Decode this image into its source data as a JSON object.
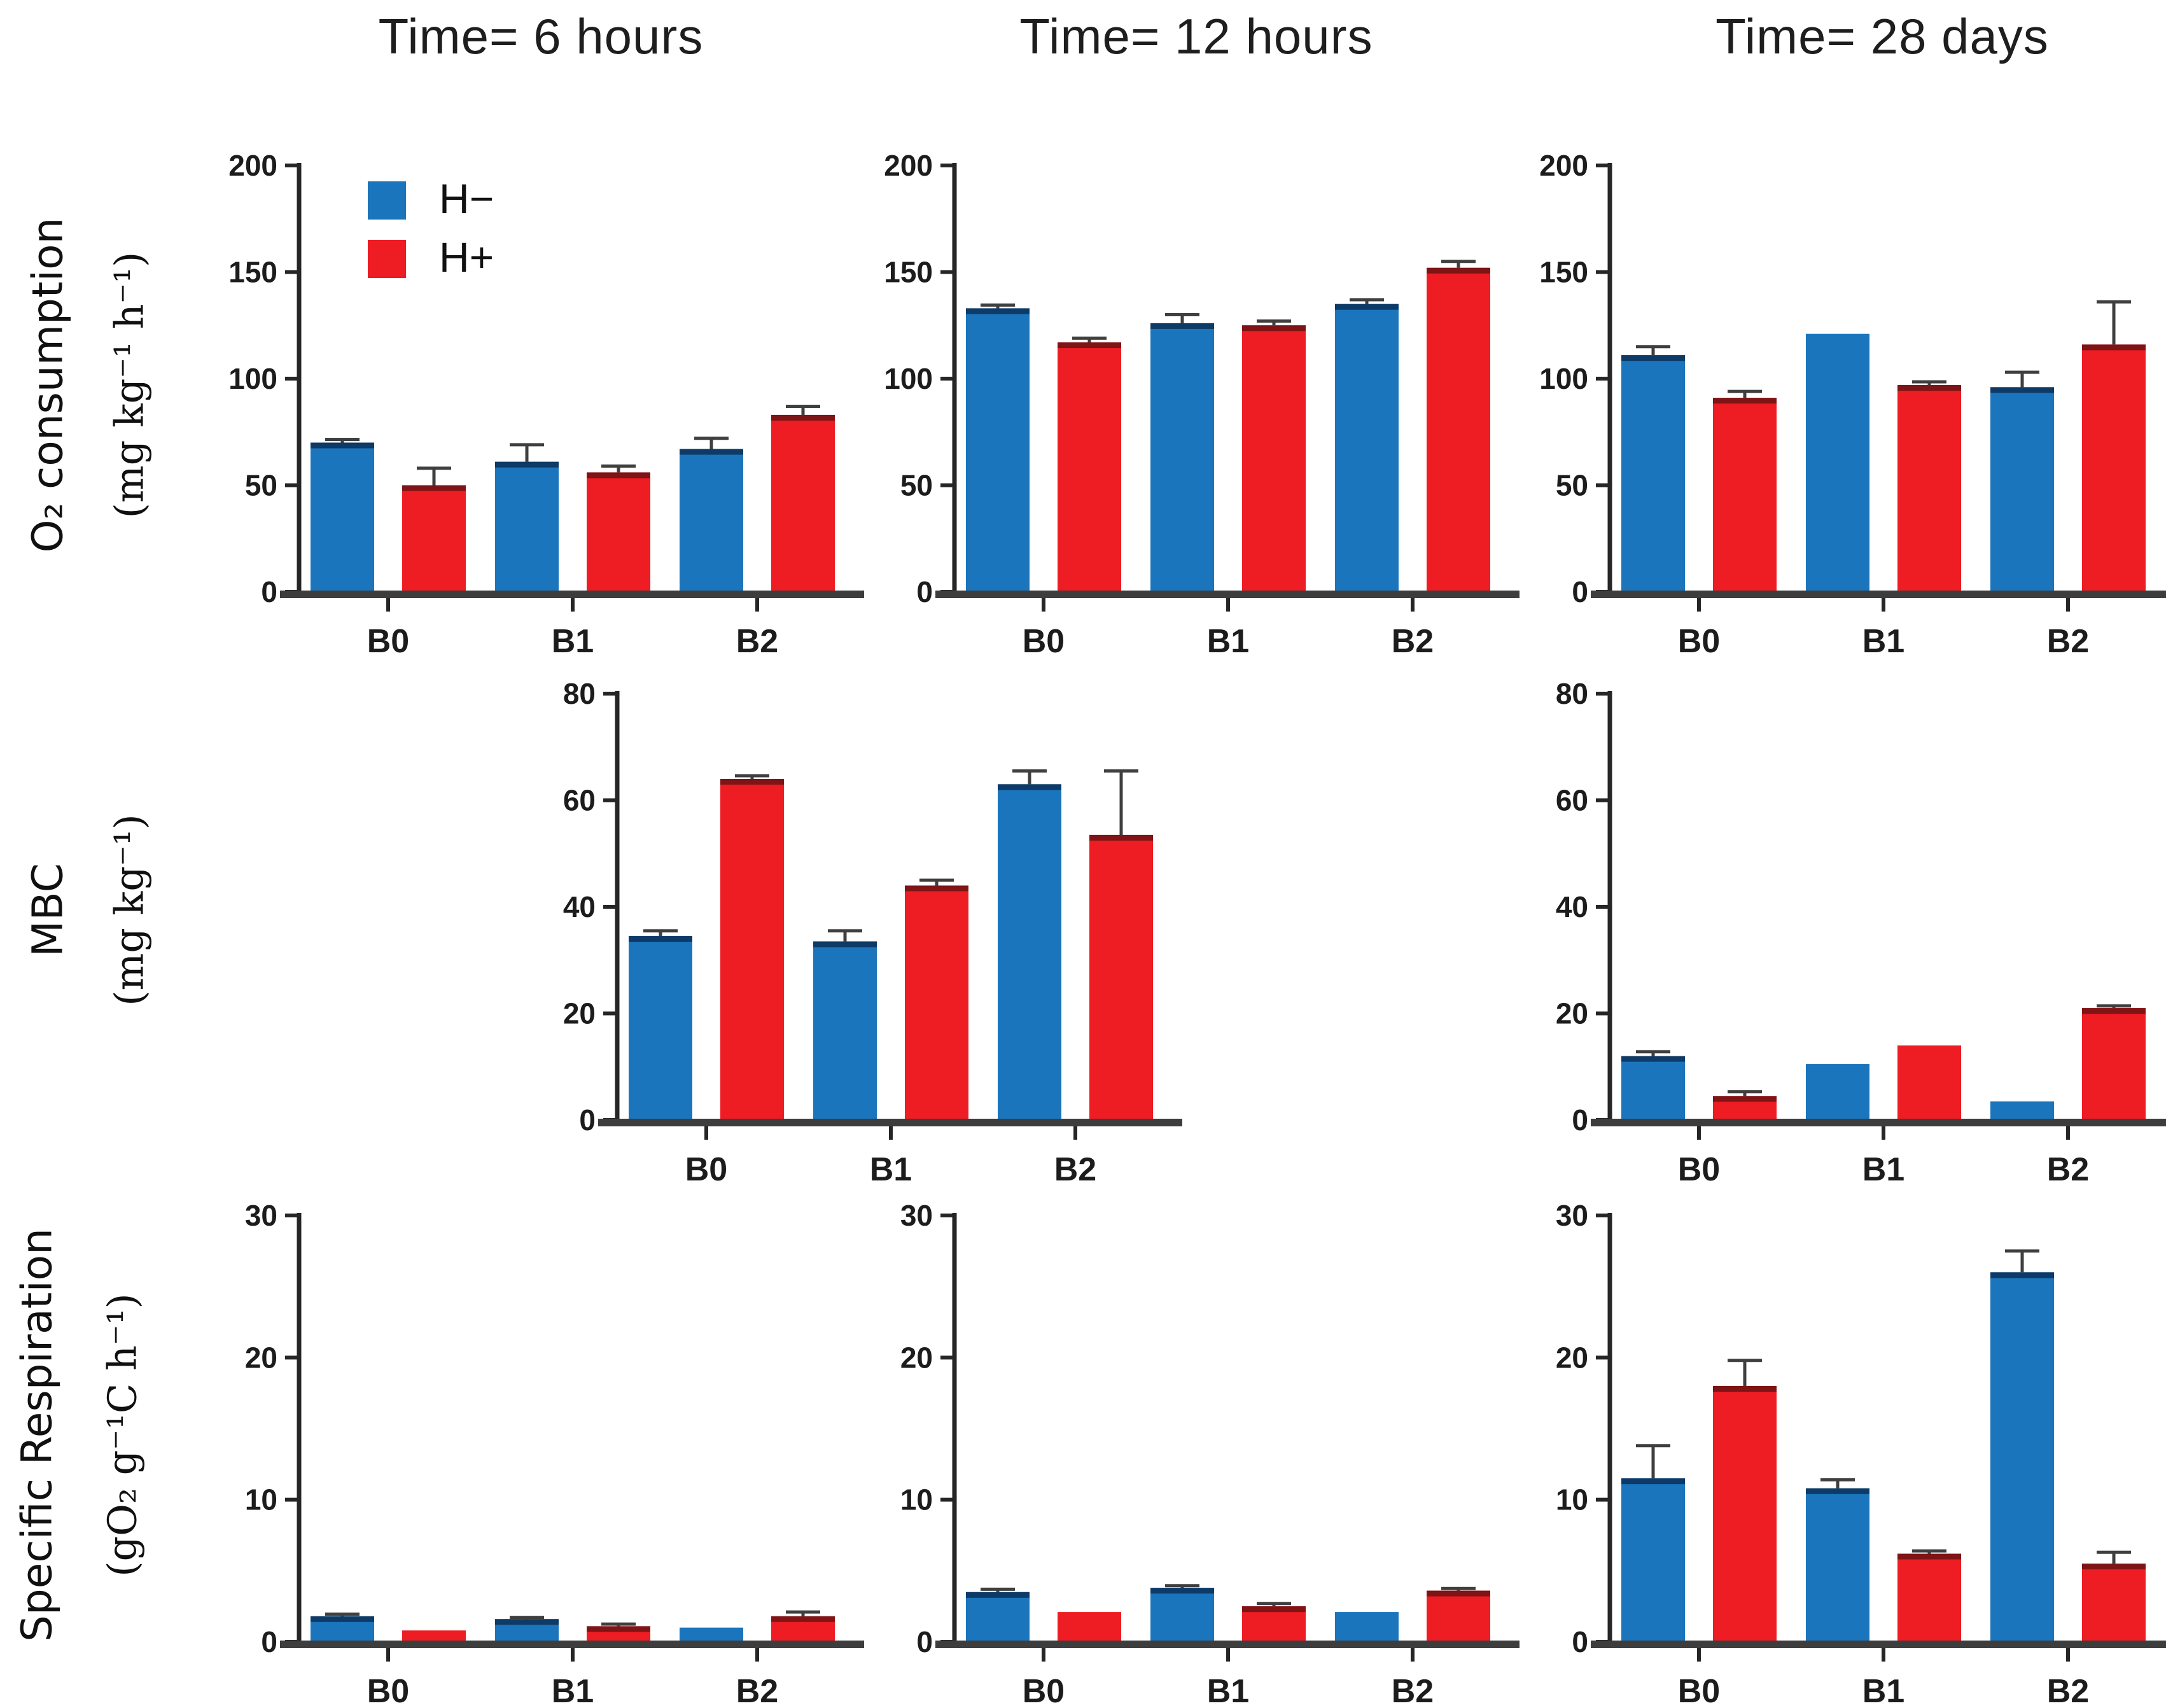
{
  "figure": {
    "background": "#ffffff",
    "column_headers": [
      {
        "label": "Time= 6 hours"
      },
      {
        "label": "Time= 12 hours"
      },
      {
        "label": "Time= 28 days"
      }
    ],
    "row_labels": [
      {
        "name": "O₂ consumption",
        "unit": "(mg kg⁻¹ h⁻¹)"
      },
      {
        "name": "MBC",
        "unit": "(mg kg⁻¹)"
      },
      {
        "name": "Specific Respiration",
        "unit": "(gO₂ g⁻¹C h⁻¹)"
      }
    ],
    "legend": {
      "items": [
        {
          "label": "H−",
          "color_key": "h_minus"
        },
        {
          "label": "H+",
          "color_key": "h_plus"
        }
      ]
    }
  },
  "colors": {
    "h_minus": "#1b75bc",
    "h_plus": "#ee1c23",
    "h_minus_dark": "#0d3a66",
    "h_plus_dark": "#7e1416",
    "axis": "#262626",
    "baseline": "#3d3d3d",
    "error": "#3f3f3f",
    "text": "#1c1c1c"
  },
  "chart_data": [
    {
      "id": "o2-6h",
      "type": "bar",
      "title": "Time= 6 hours",
      "ylabel": "O₂ consumption",
      "unit": "mg kg⁻¹ h⁻¹",
      "categories": [
        "B0",
        "B1",
        "B2"
      ],
      "ylim": [
        0,
        200
      ],
      "yticks": [
        0,
        50,
        100,
        150,
        200
      ],
      "series": [
        {
          "name": "H−",
          "color_key": "h_minus",
          "values": [
            70,
            61,
            67
          ],
          "errors": [
            1.5,
            8,
            5
          ]
        },
        {
          "name": "H+",
          "color_key": "h_plus",
          "values": [
            50,
            56,
            83
          ],
          "errors": [
            8,
            3,
            4
          ]
        }
      ],
      "legend": true,
      "pos": {
        "left": 260,
        "top": 190
      }
    },
    {
      "id": "o2-12h",
      "type": "bar",
      "title": "Time= 12 hours",
      "ylabel": "O₂ consumption",
      "unit": "mg kg⁻¹ h⁻¹",
      "categories": [
        "B0",
        "B1",
        "B2"
      ],
      "ylim": [
        0,
        200
      ],
      "yticks": [
        0,
        50,
        100,
        150,
        200
      ],
      "series": [
        {
          "name": "H−",
          "color_key": "h_minus",
          "values": [
            133,
            126,
            135
          ],
          "errors": [
            1.5,
            4,
            2
          ]
        },
        {
          "name": "H+",
          "color_key": "h_plus",
          "values": [
            117,
            125,
            152
          ],
          "errors": [
            2,
            2,
            3
          ]
        }
      ],
      "legend": false,
      "pos": {
        "left": 1290,
        "top": 190
      }
    },
    {
      "id": "o2-28d",
      "type": "bar",
      "title": "Time= 28 days",
      "ylabel": "O₂ consumption",
      "unit": "mg kg⁻¹ h⁻¹",
      "categories": [
        "B0",
        "B1",
        "B2"
      ],
      "ylim": [
        0,
        200
      ],
      "yticks": [
        0,
        50,
        100,
        150,
        200
      ],
      "series": [
        {
          "name": "H−",
          "color_key": "h_minus",
          "values": [
            111,
            121,
            96
          ],
          "errors": [
            4,
            0,
            7
          ]
        },
        {
          "name": "H+",
          "color_key": "h_plus",
          "values": [
            91,
            97,
            116
          ],
          "errors": [
            3,
            1.5,
            20
          ]
        }
      ],
      "legend": false,
      "pos": {
        "left": 2320,
        "top": 190
      }
    },
    {
      "id": "mbc-12h",
      "type": "bar",
      "title": "Time= 12 hours",
      "ylabel": "MBC",
      "unit": "mg kg⁻¹",
      "categories": [
        "B0",
        "B1",
        "B2"
      ],
      "ylim": [
        0,
        80
      ],
      "yticks": [
        0,
        20,
        40,
        60,
        80
      ],
      "series": [
        {
          "name": "H−",
          "color_key": "h_minus",
          "values": [
            34.5,
            33.5,
            63
          ],
          "errors": [
            1,
            2,
            2.5
          ]
        },
        {
          "name": "H+",
          "color_key": "h_plus",
          "values": [
            64,
            44,
            53.5
          ],
          "errors": [
            0.6,
            1,
            12
          ]
        }
      ],
      "legend": false,
      "pos": {
        "left": 760,
        "top": 1020
      }
    },
    {
      "id": "mbc-28d",
      "type": "bar",
      "title": "Time= 28 days",
      "ylabel": "MBC",
      "unit": "mg kg⁻¹",
      "categories": [
        "B0",
        "B1",
        "B2"
      ],
      "ylim": [
        0,
        80
      ],
      "yticks": [
        0,
        20,
        40,
        60,
        80
      ],
      "series": [
        {
          "name": "H−",
          "color_key": "h_minus",
          "values": [
            12,
            10.5,
            3.5
          ],
          "errors": [
            0.8,
            0,
            0
          ]
        },
        {
          "name": "H+",
          "color_key": "h_plus",
          "values": [
            4.5,
            14,
            21
          ],
          "errors": [
            0.8,
            0,
            0.4
          ]
        }
      ],
      "legend": false,
      "pos": {
        "left": 2320,
        "top": 1020
      }
    },
    {
      "id": "sr-6h",
      "type": "bar",
      "title": "Time= 6 hours",
      "ylabel": "Specific Respiration",
      "unit": "gO₂ g⁻¹C h⁻¹",
      "categories": [
        "B0",
        "B1",
        "B2"
      ],
      "ylim": [
        0,
        30
      ],
      "yticks": [
        0,
        10,
        20,
        30
      ],
      "series": [
        {
          "name": "H−",
          "color_key": "h_minus",
          "values": [
            1.8,
            1.6,
            1.0
          ],
          "errors": [
            0.15,
            0.12,
            0
          ]
        },
        {
          "name": "H+",
          "color_key": "h_plus",
          "values": [
            0.8,
            1.1,
            1.8
          ],
          "errors": [
            0,
            0.15,
            0.3
          ]
        }
      ],
      "legend": false,
      "pos": {
        "left": 260,
        "top": 1840
      }
    },
    {
      "id": "sr-12h",
      "type": "bar",
      "title": "Time= 12 hours",
      "ylabel": "Specific Respiration",
      "unit": "gO₂ g⁻¹C h⁻¹",
      "categories": [
        "B0",
        "B1",
        "B2"
      ],
      "ylim": [
        0,
        30
      ],
      "yticks": [
        0,
        10,
        20,
        30
      ],
      "series": [
        {
          "name": "H−",
          "color_key": "h_minus",
          "values": [
            3.5,
            3.8,
            2.1
          ],
          "errors": [
            0.2,
            0.15,
            0
          ]
        },
        {
          "name": "H+",
          "color_key": "h_plus",
          "values": [
            2.1,
            2.5,
            3.6
          ],
          "errors": [
            0,
            0.2,
            0.15
          ]
        }
      ],
      "legend": false,
      "pos": {
        "left": 1290,
        "top": 1840
      }
    },
    {
      "id": "sr-28d",
      "type": "bar",
      "title": "Time= 28 days",
      "ylabel": "Specific Respiration",
      "unit": "gO₂ g⁻¹C h⁻¹",
      "categories": [
        "B0",
        "B1",
        "B2"
      ],
      "ylim": [
        0,
        30
      ],
      "yticks": [
        0,
        10,
        20,
        30
      ],
      "series": [
        {
          "name": "H−",
          "color_key": "h_minus",
          "values": [
            11.5,
            10.8,
            26
          ],
          "errors": [
            2.3,
            0.6,
            1.5
          ]
        },
        {
          "name": "H+",
          "color_key": "h_plus",
          "values": [
            18,
            6.2,
            5.5
          ],
          "errors": [
            1.8,
            0.2,
            0.8
          ]
        }
      ],
      "legend": false,
      "pos": {
        "left": 2320,
        "top": 1840
      }
    }
  ]
}
